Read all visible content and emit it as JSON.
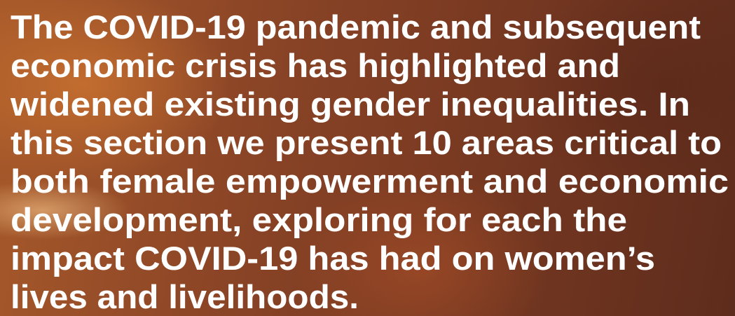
{
  "paragraph": {
    "lines": [
      "The COVID-19 pandemic and subsequent",
      "economic crisis has highlighted and",
      "widened existing gender inequalities. In",
      "this section we present 10 areas critical to",
      "both female empowerment and economic",
      "development, exploring for each the",
      "impact COVID-19 has had on women’s",
      "lives and livelihoods."
    ]
  }
}
